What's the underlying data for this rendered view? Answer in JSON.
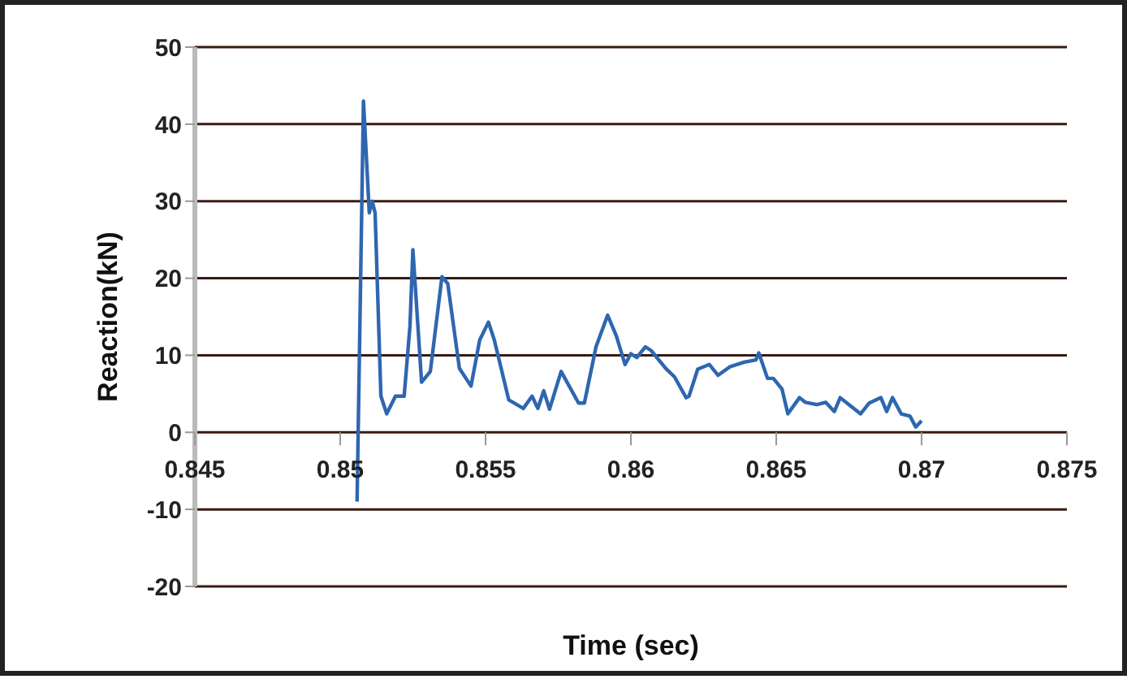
{
  "chart_data": {
    "type": "line",
    "xlabel": "Time (sec)",
    "ylabel": "Reaction(kN)",
    "xlim": [
      0.845,
      0.875
    ],
    "xticks": [
      0.845,
      0.85,
      0.855,
      0.86,
      0.865,
      0.87,
      0.875
    ],
    "ylim": [
      -20,
      50
    ],
    "yticks": [
      -20,
      -10,
      0,
      10,
      20,
      30,
      40,
      50
    ],
    "grid": "y",
    "legend": false,
    "marker": "none",
    "line_style": "solid",
    "series": [
      {
        "color": "#2e66b0",
        "x": [
          0.85058,
          0.8508,
          0.851,
          0.8511,
          0.8512,
          0.8514,
          0.8516,
          0.8519,
          0.8522,
          0.8524,
          0.8525,
          0.8528,
          0.8531,
          0.8535,
          0.8537,
          0.8541,
          0.8545,
          0.8548,
          0.8551,
          0.8553,
          0.8558,
          0.8563,
          0.8566,
          0.8568,
          0.857,
          0.8572,
          0.8576,
          0.8582,
          0.8584,
          0.8588,
          0.8592,
          0.8595,
          0.8598,
          0.86,
          0.8602,
          0.8605,
          0.8607,
          0.8612,
          0.8615,
          0.8619,
          0.862,
          0.8623,
          0.8627,
          0.863,
          0.8634,
          0.8639,
          0.8643,
          0.8644,
          0.8647,
          0.8649,
          0.8652,
          0.8654,
          0.8658,
          0.866,
          0.8664,
          0.8667,
          0.867,
          0.8672,
          0.8676,
          0.8679,
          0.8682,
          0.8686,
          0.8688,
          0.869,
          0.8693,
          0.8696,
          0.8698,
          0.87
        ],
        "values": [
          -9,
          43,
          28.5,
          30,
          28.5,
          4.7,
          2.4,
          4.7,
          4.7,
          13.8,
          23.7,
          6.5,
          7.9,
          20.2,
          19.3,
          8.3,
          6,
          12,
          14.3,
          12,
          4.2,
          3.1,
          4.7,
          3.1,
          5.4,
          3,
          7.9,
          3.8,
          3.8,
          11.1,
          15.2,
          12.5,
          8.8,
          10.2,
          9.7,
          11.1,
          10.6,
          8.3,
          7.2,
          4.5,
          4.7,
          8.2,
          8.8,
          7.4,
          8.5,
          9.1,
          9.4,
          10.3,
          7,
          7,
          5.6,
          2.4,
          4.5,
          3.9,
          3.6,
          3.9,
          2.7,
          4.5,
          3.3,
          2.4,
          3.8,
          4.5,
          2.7,
          4.5,
          2.4,
          2.1,
          0.7,
          1.5
        ]
      }
    ]
  }
}
